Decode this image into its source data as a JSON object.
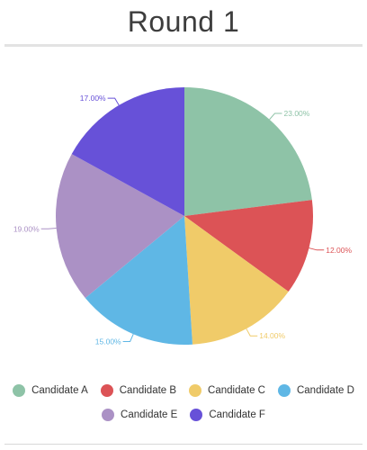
{
  "title": "Round 1",
  "chart_data": {
    "type": "pie",
    "title": "Round 1",
    "slices": [
      {
        "name": "Candidate A",
        "value": 23.0,
        "label": "23.00%",
        "color": "#8ec3a7"
      },
      {
        "name": "Candidate B",
        "value": 12.0,
        "label": "12.00%",
        "color": "#dc5356"
      },
      {
        "name": "Candidate C",
        "value": 14.0,
        "label": "14.00%",
        "color": "#f0cb69"
      },
      {
        "name": "Candidate D",
        "value": 15.0,
        "label": "15.00%",
        "color": "#5fb7e5"
      },
      {
        "name": "Candidate E",
        "value": 19.0,
        "label": "19.00%",
        "color": "#ab91c5"
      },
      {
        "name": "Candidate F",
        "value": 17.0,
        "label": "17.00%",
        "color": "#6751d8"
      }
    ],
    "legend_position": "bottom"
  }
}
